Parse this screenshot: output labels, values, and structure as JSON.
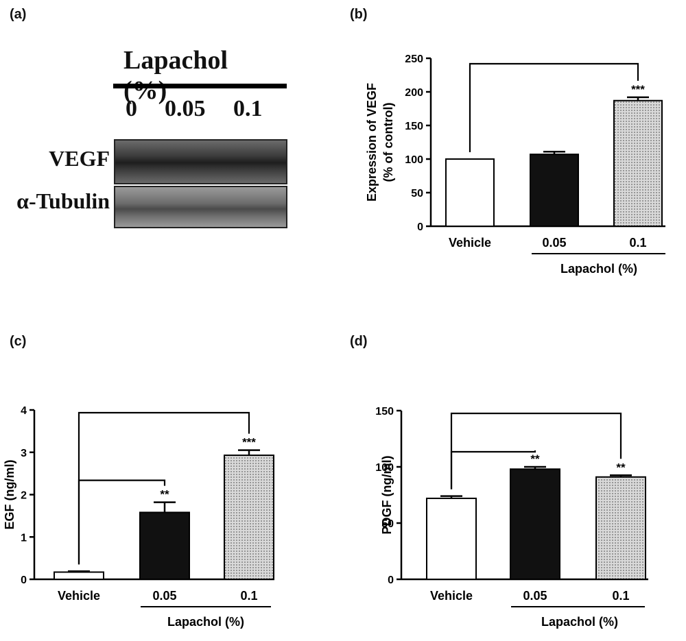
{
  "panels": {
    "a": {
      "label": "(a)"
    },
    "b": {
      "label": "(b)"
    },
    "c": {
      "label": "(c)"
    },
    "d": {
      "label": "(d)"
    }
  },
  "blot": {
    "title": "Lapachol (%)",
    "lanes": [
      "0",
      "0.05",
      "0.1"
    ],
    "rows": [
      "VEGF",
      "α-Tubulin"
    ]
  },
  "chart_data": [
    {
      "panel": "b",
      "type": "bar",
      "categories": [
        "Vehicle",
        "0.05",
        "0.1"
      ],
      "values": [
        100,
        107,
        187
      ],
      "errors": [
        0,
        4,
        5
      ],
      "fills": [
        "white",
        "black",
        "dotted"
      ],
      "significance": [
        "",
        "",
        "***"
      ],
      "comparisons": [
        {
          "from": 0,
          "to": 2,
          "label": "***"
        }
      ],
      "ylabel_line1": "Expression of VEGF",
      "ylabel_line2": "(% of control)",
      "xgroup_label": "Lapachol  (%)",
      "ylim": [
        0,
        250
      ],
      "yticks": [
        0,
        50,
        100,
        150,
        200,
        250
      ]
    },
    {
      "panel": "c",
      "type": "bar",
      "categories": [
        "Vehicle",
        "0.05",
        "0.1"
      ],
      "values": [
        0.17,
        1.58,
        2.93
      ],
      "errors": [
        0.02,
        0.24,
        0.12
      ],
      "fills": [
        "white",
        "black",
        "dotted"
      ],
      "significance": [
        "",
        "**",
        "***"
      ],
      "comparisons": [
        {
          "from": 0,
          "to": 1,
          "label": "**"
        },
        {
          "from": 0,
          "to": 2,
          "label": "***"
        }
      ],
      "ylabel_line1": "EGF (ng/ml)",
      "ylabel_line2": "",
      "xgroup_label": "Lapachol (%)",
      "ylim": [
        0,
        4
      ],
      "yticks": [
        0,
        1,
        2,
        3,
        4
      ]
    },
    {
      "panel": "d",
      "type": "bar",
      "categories": [
        "Vehicle",
        "0.05",
        "0.1"
      ],
      "values": [
        72,
        98,
        91
      ],
      "errors": [
        2,
        2,
        1.5
      ],
      "fills": [
        "white",
        "black",
        "dotted"
      ],
      "significance": [
        "",
        "**",
        "**"
      ],
      "comparisons": [
        {
          "from": 0,
          "to": 1,
          "label": "**"
        },
        {
          "from": 0,
          "to": 2,
          "label": "**"
        }
      ],
      "ylabel_line1": "PDGF (ng/ml)",
      "ylabel_line2": "",
      "xgroup_label": "Lapachol  (%)",
      "ylim": [
        0,
        150
      ],
      "yticks": [
        0,
        50,
        100,
        150
      ]
    }
  ]
}
